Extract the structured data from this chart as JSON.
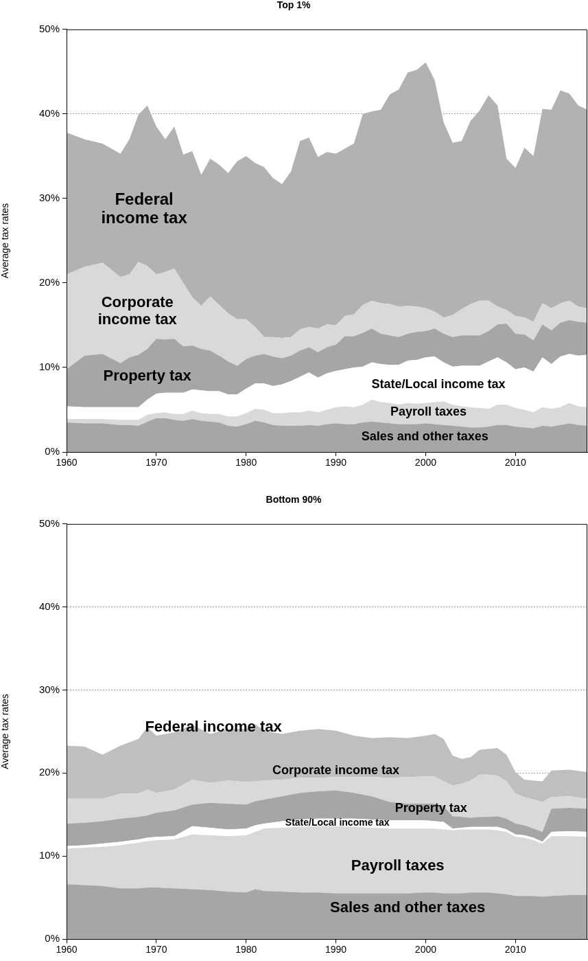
{
  "chart_data": [
    {
      "type": "area",
      "title": "Top 1%",
      "ylabel": "Average tax rates",
      "stacked": true,
      "grid": "y",
      "legend": false,
      "x": [
        1960,
        1962,
        1964,
        1966,
        1967,
        1968,
        1969,
        1970,
        1971,
        1972,
        1973,
        1974,
        1975,
        1976,
        1977,
        1978,
        1979,
        1980,
        1981,
        1982,
        1983,
        1984,
        1985,
        1986,
        1987,
        1988,
        1989,
        1990,
        1991,
        1992,
        1993,
        1994,
        1995,
        1996,
        1997,
        1998,
        1999,
        2000,
        2001,
        2002,
        2003,
        2004,
        2005,
        2006,
        2007,
        2008,
        2009,
        2010,
        2011,
        2012,
        2013,
        2014,
        2015,
        2016,
        2017,
        2018
      ],
      "xlim": [
        1960,
        2018
      ],
      "xticks": [
        1960,
        1970,
        1980,
        1990,
        2000,
        2010
      ],
      "ylim": [
        0,
        50
      ],
      "yticks": [
        {
          "value": 0,
          "label": "0%"
        },
        {
          "value": 10,
          "label": "10%"
        },
        {
          "value": 20,
          "label": "20%"
        },
        {
          "value": 30,
          "label": "30%"
        },
        {
          "value": 40,
          "label": "40%"
        },
        {
          "value": 50,
          "label": "50%"
        }
      ],
      "series": [
        {
          "name": "Sales and other taxes",
          "color": "#a6a6a6",
          "values": [
            3.5,
            3.4,
            3.4,
            3.2,
            3.2,
            3.1,
            3.6,
            4.0,
            4.0,
            3.8,
            3.7,
            3.9,
            3.7,
            3.6,
            3.5,
            3.1,
            3.0,
            3.3,
            3.7,
            3.5,
            3.2,
            3.1,
            3.1,
            3.1,
            3.2,
            3.1,
            3.3,
            3.4,
            3.3,
            3.3,
            3.5,
            3.6,
            3.5,
            3.4,
            3.3,
            3.3,
            3.3,
            3.4,
            3.3,
            3.2,
            3.1,
            3.0,
            2.9,
            2.9,
            3.0,
            3.2,
            3.2,
            3.0,
            2.9,
            2.8,
            3.1,
            3.0,
            3.2,
            3.4,
            3.2,
            3.1
          ]
        },
        {
          "name": "Payroll taxes",
          "color": "#d9d9d9",
          "values": [
            0.4,
            0.5,
            0.5,
            0.6,
            0.6,
            0.7,
            0.8,
            0.6,
            0.7,
            0.7,
            0.8,
            1.0,
            0.9,
            0.9,
            1.0,
            1.1,
            1.2,
            1.3,
            1.4,
            1.5,
            1.4,
            1.5,
            1.6,
            1.6,
            1.7,
            1.6,
            1.7,
            1.9,
            2.1,
            2.0,
            2.1,
            2.6,
            2.4,
            2.4,
            2.3,
            2.5,
            2.4,
            2.4,
            2.6,
            2.8,
            2.5,
            2.4,
            2.4,
            2.3,
            2.1,
            2.4,
            2.4,
            2.2,
            2.1,
            1.9,
            2.2,
            2.1,
            2.1,
            2.4,
            2.2,
            2.2
          ]
        },
        {
          "name": "State/Local income tax",
          "color": "#ffffff",
          "values": [
            1.5,
            1.4,
            1.4,
            1.5,
            1.5,
            1.5,
            1.8,
            2.3,
            2.3,
            2.5,
            2.5,
            2.5,
            2.7,
            2.7,
            2.7,
            2.6,
            2.6,
            2.9,
            3.0,
            3.1,
            3.2,
            3.4,
            3.7,
            4.2,
            4.5,
            4.1,
            4.3,
            4.3,
            4.4,
            4.7,
            4.5,
            4.4,
            4.5,
            4.5,
            4.7,
            5.0,
            5.2,
            5.4,
            5.4,
            4.6,
            4.5,
            4.8,
            4.9,
            5.0,
            5.6,
            5.6,
            5.0,
            4.6,
            5.0,
            4.8,
            5.9,
            5.3,
            6.0,
            5.8,
            6.0,
            6.2
          ]
        },
        {
          "name": "Property tax",
          "color": "#a6a6a6",
          "values": [
            4.4,
            6.1,
            6.3,
            5.2,
            5.9,
            6.2,
            6.0,
            6.5,
            6.3,
            6.4,
            5.5,
            5.2,
            4.9,
            4.8,
            4.2,
            3.9,
            3.4,
            3.5,
            3.3,
            3.5,
            3.5,
            3.1,
            3.0,
            3.1,
            3.0,
            3.0,
            3.1,
            3.1,
            3.9,
            3.7,
            4.0,
            4.0,
            3.6,
            3.5,
            3.3,
            3.2,
            3.3,
            3.1,
            3.3,
            3.4,
            3.5,
            3.6,
            3.6,
            3.6,
            3.6,
            3.9,
            4.6,
            4.2,
            3.9,
            3.7,
            3.9,
            4.0,
            4.0,
            4.0,
            4.0,
            3.8
          ]
        },
        {
          "name": "Corporate income tax",
          "color": "#d9d9d9",
          "values": [
            11.2,
            10.5,
            10.8,
            10.2,
            9.8,
            11.0,
            9.8,
            7.6,
            8.0,
            8.3,
            7.5,
            5.7,
            5.1,
            6.4,
            6.0,
            5.7,
            5.5,
            4.7,
            3.4,
            2.0,
            2.3,
            2.4,
            2.2,
            2.5,
            2.4,
            2.8,
            2.7,
            2.3,
            2.4,
            2.6,
            3.3,
            3.3,
            3.6,
            3.7,
            3.6,
            3.3,
            3.0,
            2.7,
            2.0,
            1.9,
            2.6,
            3.1,
            3.7,
            4.1,
            3.6,
            2.1,
            1.6,
            2.1,
            2.0,
            2.2,
            2.5,
            2.6,
            2.3,
            2.3,
            1.8,
            1.7
          ]
        },
        {
          "name": "Federal income tax",
          "color": "#b2b2b2",
          "values": [
            16.8,
            15.1,
            14.1,
            14.6,
            16.0,
            17.4,
            19.0,
            17.5,
            15.7,
            16.8,
            15.2,
            17.3,
            15.5,
            16.3,
            16.6,
            16.6,
            18.7,
            19.3,
            19.4,
            20.1,
            18.8,
            18.2,
            19.6,
            22.3,
            22.4,
            20.3,
            20.4,
            20.3,
            19.8,
            20.2,
            22.6,
            22.4,
            22.9,
            24.8,
            25.7,
            27.6,
            28.0,
            29.1,
            27.4,
            23.1,
            20.4,
            19.9,
            21.7,
            22.5,
            24.3,
            23.8,
            17.9,
            17.5,
            20.1,
            19.6,
            23.0,
            23.5,
            25.2,
            24.5,
            23.8,
            23.5
          ]
        }
      ]
    },
    {
      "type": "area",
      "title": "Bottom 90%",
      "ylabel": "Average tax rates",
      "stacked": true,
      "grid": "y",
      "legend": false,
      "x": [
        1960,
        1962,
        1964,
        1966,
        1968,
        1969,
        1970,
        1972,
        1974,
        1976,
        1978,
        1980,
        1981,
        1982,
        1984,
        1986,
        1988,
        1990,
        1992,
        1994,
        1996,
        1998,
        2000,
        2001,
        2002,
        2003,
        2004,
        2005,
        2006,
        2007,
        2008,
        2009,
        2010,
        2011,
        2012,
        2013,
        2014,
        2016,
        2018
      ],
      "xlim": [
        1960,
        2018
      ],
      "xticks": [
        1960,
        1970,
        1980,
        1990,
        2000,
        2010
      ],
      "ylim": [
        0,
        50
      ],
      "yticks": [
        {
          "value": 0,
          "label": "0%"
        },
        {
          "value": 10,
          "label": "10%"
        },
        {
          "value": 20,
          "label": "20%"
        },
        {
          "value": 30,
          "label": "30%"
        },
        {
          "value": 40,
          "label": "40%"
        },
        {
          "value": 50,
          "label": "50%"
        }
      ],
      "series": [
        {
          "name": "Sales and other taxes",
          "color": "#a6a6a6",
          "values": [
            6.6,
            6.5,
            6.4,
            6.1,
            6.1,
            6.2,
            6.2,
            6.1,
            6.0,
            5.9,
            5.7,
            5.6,
            6.0,
            5.8,
            5.7,
            5.6,
            5.6,
            5.5,
            5.5,
            5.5,
            5.5,
            5.5,
            5.6,
            5.6,
            5.5,
            5.5,
            5.5,
            5.6,
            5.6,
            5.6,
            5.5,
            5.4,
            5.2,
            5.2,
            5.2,
            5.1,
            5.2,
            5.3,
            5.3
          ]
        },
        {
          "name": "Payroll taxes",
          "color": "#d9d9d9",
          "values": [
            4.3,
            4.5,
            4.7,
            5.2,
            5.5,
            5.6,
            5.7,
            5.9,
            6.6,
            6.6,
            6.7,
            6.9,
            6.9,
            7.5,
            7.7,
            7.9,
            8.0,
            8.1,
            8.0,
            7.9,
            7.8,
            7.8,
            7.7,
            7.7,
            7.7,
            7.6,
            7.7,
            7.6,
            7.6,
            7.6,
            7.6,
            7.5,
            7.1,
            7.0,
            6.7,
            6.4,
            7.2,
            7.1,
            7.0
          ]
        },
        {
          "name": "State/Local income tax",
          "color": "#ffffff",
          "values": [
            0.3,
            0.3,
            0.4,
            0.4,
            0.4,
            0.4,
            0.4,
            0.4,
            1.0,
            0.9,
            0.8,
            0.8,
            0.8,
            0.6,
            0.8,
            0.9,
            0.9,
            0.9,
            1.0,
            1.0,
            1.0,
            1.0,
            1.0,
            0.9,
            0.9,
            0.2,
            0.2,
            0.3,
            0.3,
            0.3,
            0.4,
            0.3,
            0.3,
            0.3,
            0.3,
            0.2,
            0.5,
            0.6,
            0.6
          ]
        },
        {
          "name": "Property tax",
          "color": "#a6a6a6",
          "values": [
            2.7,
            2.7,
            2.7,
            2.8,
            2.7,
            2.7,
            2.9,
            3.1,
            2.6,
            3.0,
            3.1,
            2.9,
            2.9,
            2.9,
            3.0,
            3.2,
            3.3,
            3.4,
            3.1,
            2.8,
            2.2,
            2.0,
            2.0,
            2.1,
            1.9,
            1.5,
            1.3,
            1.1,
            1.2,
            1.2,
            1.3,
            1.3,
            1.3,
            1.2,
            1.1,
            1.2,
            2.8,
            2.8,
            2.8
          ]
        },
        {
          "name": "Corporate income tax",
          "color": "#d9d9d9",
          "values": [
            3.0,
            2.9,
            2.7,
            3.0,
            2.8,
            3.1,
            2.4,
            2.5,
            3.0,
            2.4,
            2.8,
            2.7,
            2.4,
            2.3,
            2.0,
            1.8,
            1.6,
            1.6,
            1.9,
            2.3,
            2.9,
            3.2,
            3.3,
            3.3,
            3.0,
            3.7,
            4.0,
            4.5,
            5.1,
            5.1,
            4.9,
            4.5,
            3.6,
            3.4,
            3.5,
            3.6,
            1.4,
            1.4,
            1.2
          ]
        },
        {
          "name": "Federal income tax",
          "color": "#bfbfbf",
          "values": [
            6.4,
            6.3,
            5.3,
            5.8,
            6.6,
            7.5,
            6.9,
            6.9,
            6.6,
            5.9,
            6.2,
            6.4,
            6.9,
            6.0,
            5.5,
            5.7,
            5.9,
            5.6,
            5.0,
            4.7,
            4.9,
            4.7,
            4.9,
            5.1,
            5.1,
            3.6,
            3.0,
            2.8,
            3.0,
            3.1,
            3.3,
            3.2,
            2.6,
            2.1,
            2.3,
            2.5,
            3.2,
            3.2,
            3.2
          ]
        }
      ]
    }
  ]
}
